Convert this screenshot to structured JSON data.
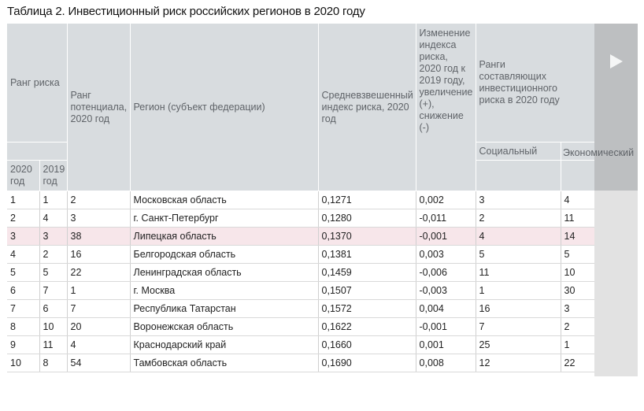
{
  "title": "Таблица 2. Инвестиционный риск российских регионов в 2020 году",
  "headers": {
    "risk_rank": "Ранг риска",
    "potential_rank": "Ранг потенциала, 2020 год",
    "region": "Регион (субъект федерации)",
    "weighted_index": "Средневзвешенный индекс риска, 2020 год",
    "index_change": "Изменение индекса риска, 2020 год к 2019 году, увеличение (+), снижение (-)",
    "component_ranks": "Ранги составляющих инвестиционного риска в 2020 году",
    "social": "Социальный",
    "economic": "Экономический",
    "year_2020": "2020 год",
    "year_2019": "2019 год"
  },
  "rows": [
    {
      "r2020": "1",
      "r2019": "1",
      "potential": "2",
      "region": "Московская область",
      "index": "0,1271",
      "change": "0,002",
      "social": "3",
      "economic": "4"
    },
    {
      "r2020": "2",
      "r2019": "4",
      "potential": "3",
      "region": "г. Санкт-Петербург",
      "index": "0,1280",
      "change": "-0,011",
      "social": "2",
      "economic": "11"
    },
    {
      "r2020": "3",
      "r2019": "3",
      "potential": "38",
      "region": "Липецкая область",
      "index": "0,1370",
      "change": "-0,001",
      "social": "4",
      "economic": "14"
    },
    {
      "r2020": "4",
      "r2019": "2",
      "potential": "16",
      "region": "Белгородская область",
      "index": "0,1381",
      "change": "0,003",
      "social": "5",
      "economic": "5"
    },
    {
      "r2020": "5",
      "r2019": "5",
      "potential": "22",
      "region": "Ленинградская область",
      "index": "0,1459",
      "change": "-0,006",
      "social": "11",
      "economic": "10"
    },
    {
      "r2020": "6",
      "r2019": "7",
      "potential": "1",
      "region": "г. Москва",
      "index": "0,1507",
      "change": "-0,003",
      "social": "1",
      "economic": "30"
    },
    {
      "r2020": "7",
      "r2019": "6",
      "potential": "7",
      "region": "Республика Татарстан",
      "index": "0,1572",
      "change": "0,004",
      "social": "16",
      "economic": "3"
    },
    {
      "r2020": "8",
      "r2019": "10",
      "potential": "20",
      "region": "Воронежская область",
      "index": "0,1622",
      "change": "-0,001",
      "social": "7",
      "economic": "2"
    },
    {
      "r2020": "9",
      "r2019": "11",
      "potential": "4",
      "region": "Краснодарский край",
      "index": "0,1660",
      "change": "0,001",
      "social": "25",
      "economic": "1"
    },
    {
      "r2020": "10",
      "r2019": "8",
      "potential": "54",
      "region": "Тамбовская область",
      "index": "0,1690",
      "change": "0,008",
      "social": "12",
      "economic": "22"
    }
  ],
  "highlight_row": 2,
  "colors": {
    "header_bg": "#d8dcdf",
    "header_text": "#5f6368",
    "highlight": "#f7e6ea",
    "scroll_panel": "#bdbfc1"
  },
  "icons": {
    "scroll_right": "play-arrow-icon"
  }
}
